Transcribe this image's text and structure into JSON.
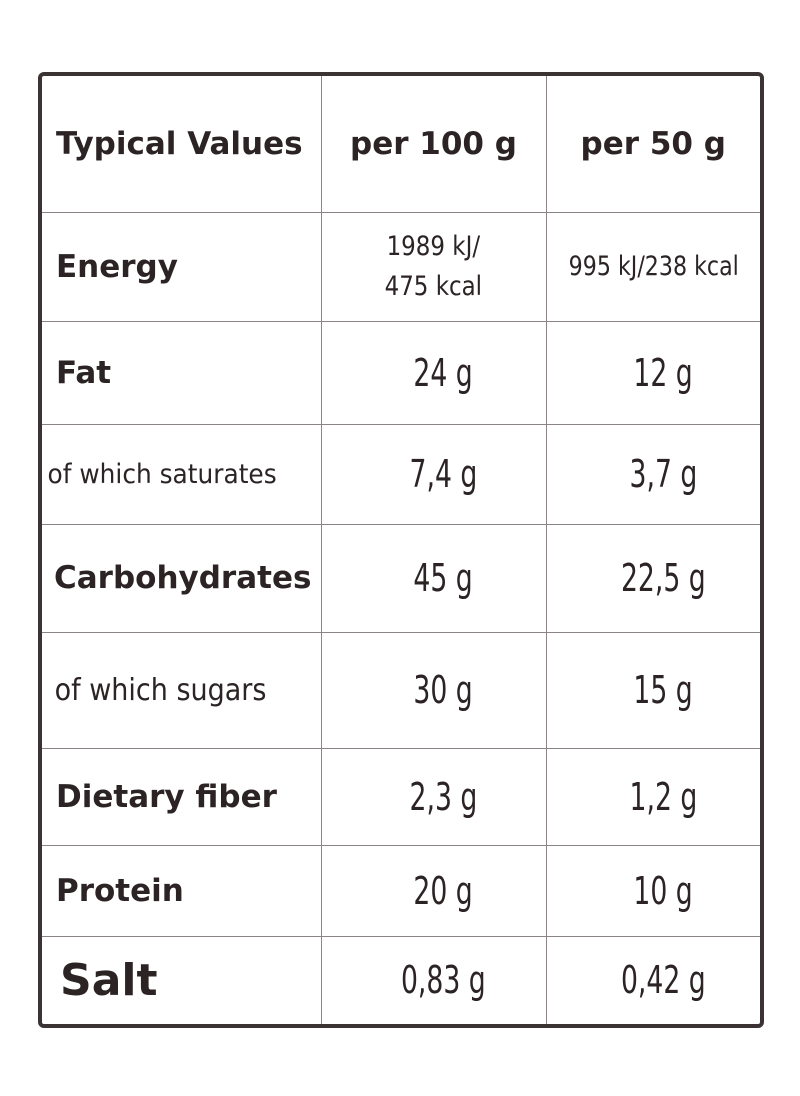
{
  "table": {
    "headers": {
      "label": "Typical Values",
      "per100": "per 100 g",
      "per50": "per 50 g"
    },
    "rows": [
      {
        "label": "Energy",
        "per100_line1": "1989 kJ/",
        "per100_line2": "475 kcal",
        "per50": "995 kJ/238 kcal"
      },
      {
        "label": "Fat",
        "per100": "24 g",
        "per50": "12 g"
      },
      {
        "label": "of which saturates",
        "per100": "7,4 g",
        "per50": "3,7 g"
      },
      {
        "label": "Carbohydrates",
        "per100": "45 g",
        "per50": "22,5 g"
      },
      {
        "label": "of which sugars",
        "per100": "30 g",
        "per50": "15 g"
      },
      {
        "label": "Dietary fiber",
        "per100": "2,3 g",
        "per50": "1,2 g"
      },
      {
        "label": "Protein",
        "per100": "20 g",
        "per50": "10 g"
      },
      {
        "label": "Salt",
        "per100": "0,83 g",
        "per50": "0,42 g"
      }
    ]
  },
  "colors": {
    "text": "#2b2324",
    "border": "#3a3233",
    "grid": "#8a8485"
  }
}
